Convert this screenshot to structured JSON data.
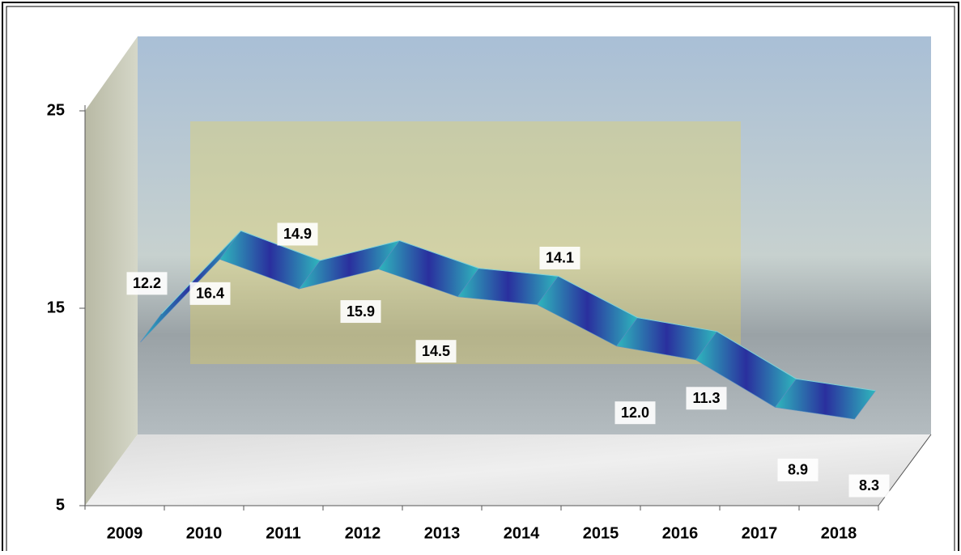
{
  "chart_data": {
    "type": "line3d",
    "categories": [
      "2009",
      "2010",
      "2011",
      "2012",
      "2013",
      "2014",
      "2015",
      "2016",
      "2017",
      "2018"
    ],
    "values": [
      12.2,
      16.4,
      14.9,
      15.9,
      14.5,
      14.1,
      12.0,
      11.3,
      8.9,
      8.3
    ],
    "value_labels": [
      "12.2",
      "16.4",
      "14.9",
      "15.9",
      "14.5",
      "14.1",
      "12.0",
      "11.3",
      "8.9",
      "8.3"
    ],
    "ylim": [
      5,
      25
    ],
    "yticks": [
      5,
      15,
      25
    ]
  }
}
